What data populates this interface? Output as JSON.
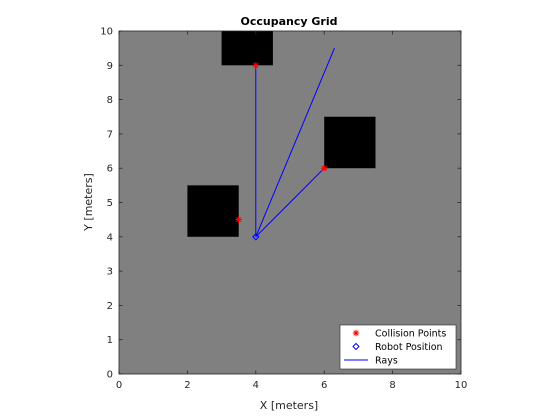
{
  "chart_data": {
    "type": "scatter",
    "title": "Occupancy Grid",
    "xlabel": "X [meters]",
    "ylabel": "Y [meters]",
    "xlim": [
      0,
      10
    ],
    "ylim": [
      0,
      10
    ],
    "xticks": [
      "0",
      "2",
      "4",
      "6",
      "8",
      "10"
    ],
    "yticks": [
      "0",
      "1",
      "2",
      "3",
      "4",
      "5",
      "6",
      "7",
      "8",
      "9",
      "10"
    ],
    "grid": false,
    "background_color": "#808080",
    "obstacle_color": "#000000",
    "obstacles": [
      {
        "x": [
          3,
          4.5
        ],
        "y": [
          9,
          10
        ]
      },
      {
        "x": [
          6,
          7.5
        ],
        "y": [
          6,
          7.5
        ]
      },
      {
        "x": [
          2,
          3.5
        ],
        "y": [
          4,
          5.5
        ]
      }
    ],
    "series": [
      {
        "name": "Collision Points",
        "marker": "*",
        "color": "#ff0000",
        "points": [
          {
            "x": 4.0,
            "y": 9.0
          },
          {
            "x": 6.0,
            "y": 6.0
          },
          {
            "x": 3.5,
            "y": 4.5
          }
        ]
      },
      {
        "name": "Robot Position",
        "marker": "diamond",
        "color": "#0000ff",
        "points": [
          {
            "x": 4.0,
            "y": 4.0
          }
        ]
      },
      {
        "name": "Rays",
        "marker": "line",
        "color": "#0000ff",
        "rays": [
          [
            [
              4.0,
              4.0
            ],
            [
              4.0,
              9.0
            ]
          ],
          [
            [
              4.0,
              4.0
            ],
            [
              6.3,
              9.5
            ]
          ],
          [
            [
              4.0,
              4.0
            ],
            [
              5.0,
              5.0
            ],
            [
              6.0,
              6.0
            ]
          ]
        ]
      }
    ],
    "legend": {
      "placement": "bottom-right",
      "entries": [
        "Collision Points",
        "Robot Position",
        "Rays"
      ]
    }
  }
}
